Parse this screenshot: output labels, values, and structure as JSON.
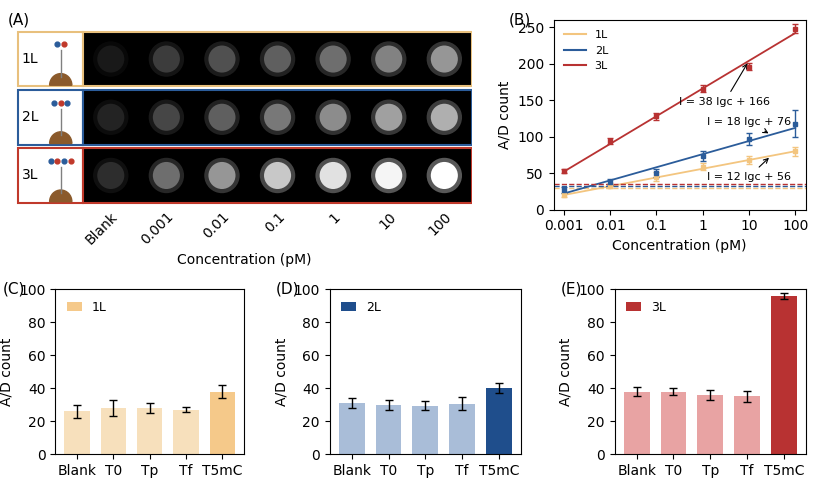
{
  "chart_data": [
    {
      "type": "dot_array",
      "title": "(A)",
      "xlabel": "Concentration (pM)",
      "categories": [
        "Blank",
        "0.001",
        "0.01",
        "0.1",
        "1",
        "10",
        "100"
      ],
      "intensity_range": [
        0,
        255
      ],
      "series": [
        {
          "name": "1L",
          "color": "#e8c07d",
          "values": [
            25,
            60,
            80,
            95,
            110,
            130,
            150
          ]
        },
        {
          "name": "2L",
          "color": "#2b5c9a",
          "values": [
            35,
            70,
            95,
            120,
            140,
            160,
            175
          ]
        },
        {
          "name": "3L",
          "color": "#c0392b",
          "values": [
            45,
            110,
            150,
            200,
            225,
            245,
            255
          ]
        }
      ]
    },
    {
      "type": "line",
      "title": "(B)",
      "xlabel": "Concentration (pM)",
      "ylabel": "A/D count",
      "log": "x",
      "legend": "upper left",
      "x": [
        0.001,
        0.01,
        0.1,
        1,
        10,
        100
      ],
      "xlim": [
        0.0006,
        170
      ],
      "xticks": [
        0.001,
        0.01,
        0.1,
        1,
        10,
        100
      ],
      "ylim": [
        0,
        260
      ],
      "yticks": [
        0,
        50,
        100,
        150,
        200,
        250
      ],
      "series": [
        {
          "name": "1L",
          "color": "#f3c57f",
          "marker": "square",
          "values": [
            20,
            33,
            45,
            59,
            68,
            80
          ],
          "errors": [
            3,
            3,
            6,
            5,
            6,
            6
          ],
          "fit": {
            "slope": 12,
            "intercept": 56
          },
          "annotation": "I = 12 lgc + 56",
          "threshold": 30
        },
        {
          "name": "2L",
          "color": "#2b5c9a",
          "marker": "square",
          "values": [
            27,
            38,
            50,
            73,
            97,
            118
          ],
          "errors": [
            4,
            4,
            5,
            7,
            8,
            18
          ],
          "fit": {
            "slope": 18,
            "intercept": 76
          },
          "annotation": "I = 18 lgc + 76",
          "threshold": 32
        },
        {
          "name": "3L",
          "color": "#b83232",
          "marker": "square",
          "values": [
            53,
            94,
            128,
            166,
            196,
            248
          ],
          "errors": [
            3,
            4,
            5,
            5,
            5,
            6
          ],
          "fit": {
            "slope": 38,
            "intercept": 166
          },
          "annotation": "I = 38 lgc + 166",
          "threshold": 35
        }
      ]
    },
    {
      "type": "bar",
      "title": "(C)",
      "ylabel": "A/D count",
      "legend": "upper left",
      "categories": [
        "Blank",
        "T0",
        "Tp",
        "Tf",
        "T5mC"
      ],
      "ylim": [
        0,
        100
      ],
      "yticks": [
        0,
        20,
        40,
        60,
        80,
        100
      ],
      "series": [
        {
          "name": "1L",
          "color": "#f5c98a",
          "colors": [
            "#f7e0bc",
            "#f7e0bc",
            "#f7e0bc",
            "#f7e0bc",
            "#f5c98a"
          ],
          "values": [
            26,
            28,
            28,
            27,
            38
          ],
          "errors": [
            4,
            5,
            3,
            1.5,
            4
          ]
        }
      ]
    },
    {
      "type": "bar",
      "title": "(D)",
      "ylabel": "A/D count",
      "legend": "upper left",
      "categories": [
        "Blank",
        "T0",
        "Tp",
        "Tf",
        "T5mC"
      ],
      "ylim": [
        0,
        100
      ],
      "yticks": [
        0,
        20,
        40,
        60,
        80,
        100
      ],
      "series": [
        {
          "name": "2L",
          "color": "#1f4e8c",
          "colors": [
            "#a9bdd8",
            "#a9bdd8",
            "#a9bdd8",
            "#a9bdd8",
            "#1f4e8c"
          ],
          "values": [
            31,
            30,
            29.5,
            30.5,
            40
          ],
          "errors": [
            3,
            3,
            3,
            4,
            3
          ]
        }
      ]
    },
    {
      "type": "bar",
      "title": "(E)",
      "ylabel": "A/D count",
      "legend": "upper left",
      "categories": [
        "Blank",
        "T0",
        "Tp",
        "Tf",
        "T5mC"
      ],
      "ylim": [
        0,
        100
      ],
      "yticks": [
        0,
        20,
        40,
        60,
        80,
        100
      ],
      "series": [
        {
          "name": "3L",
          "color": "#b83232",
          "colors": [
            "#e8a3a3",
            "#e8a3a3",
            "#e8a3a3",
            "#e8a3a3",
            "#b83232"
          ],
          "values": [
            38,
            38,
            36,
            35,
            96
          ],
          "errors": [
            2.5,
            2,
            3,
            3.5,
            2
          ]
        }
      ]
    }
  ]
}
